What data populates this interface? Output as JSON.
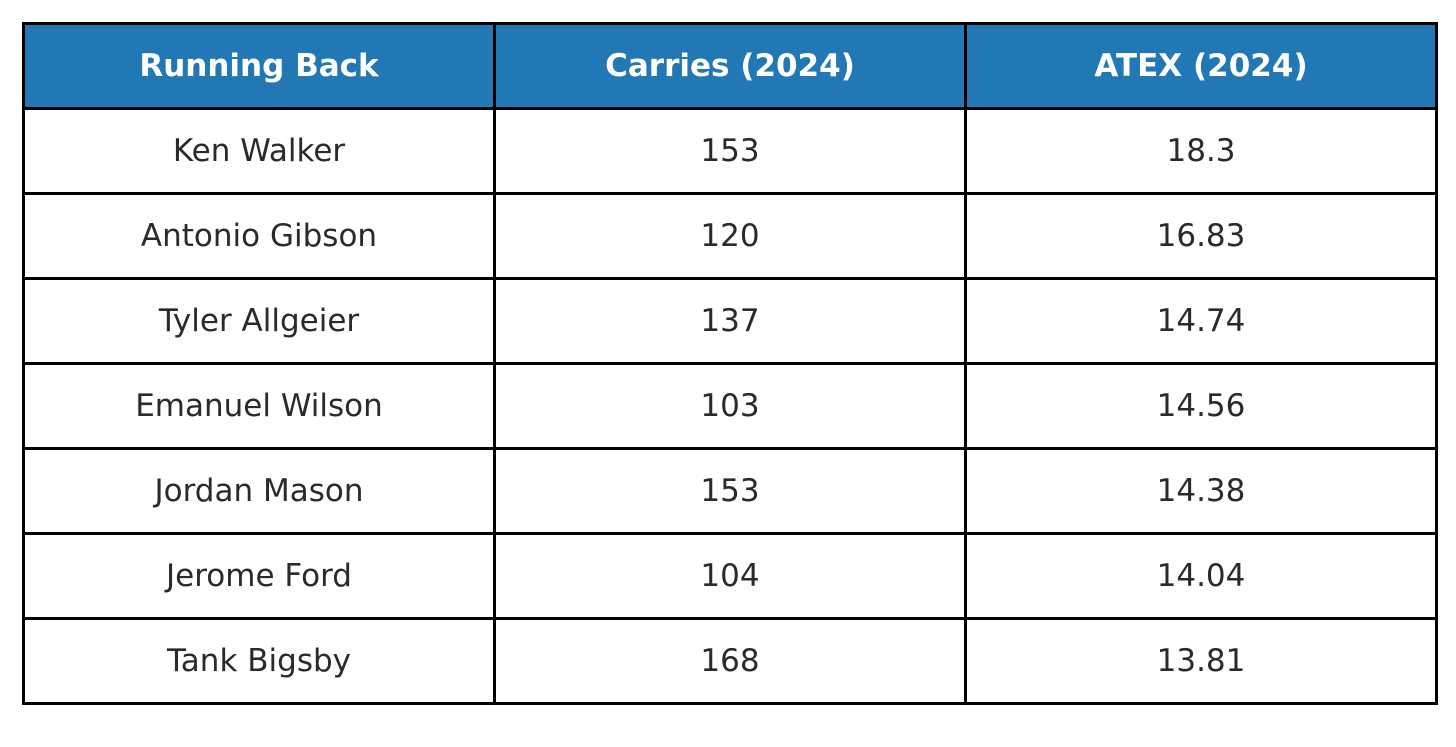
{
  "chart_data": {
    "type": "table",
    "columns": [
      "Running Back",
      "Carries (2024)",
      "ATEX (2024)"
    ],
    "rows": [
      [
        "Ken Walker",
        "153",
        "18.3"
      ],
      [
        "Antonio Gibson",
        "120",
        "16.83"
      ],
      [
        "Tyler Allgeier",
        "137",
        "14.74"
      ],
      [
        "Emanuel Wilson",
        "103",
        "14.56"
      ],
      [
        "Jordan Mason",
        "153",
        "14.38"
      ],
      [
        "Jerome Ford",
        "104",
        "14.04"
      ],
      [
        "Tank Bigsby",
        "168",
        "13.81"
      ]
    ]
  },
  "colors": {
    "header_background": "#2178b4",
    "header_text": "#ffffff",
    "cell_text": "#2a2a2a",
    "border": "#000000"
  }
}
